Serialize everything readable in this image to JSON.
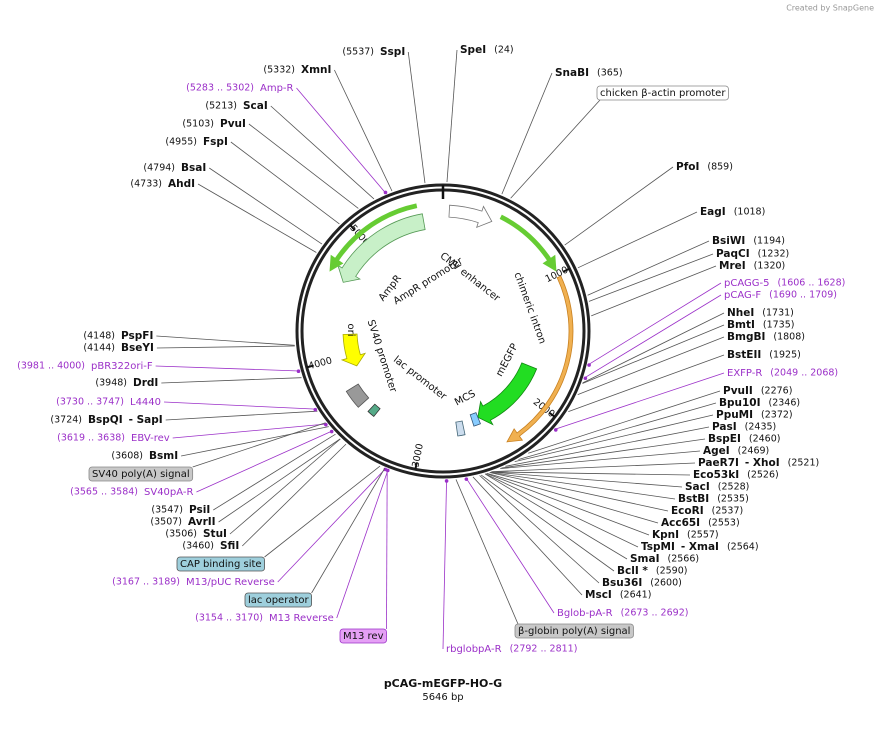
{
  "credit": "Created by SnapGene",
  "title": "pCAG-mEGFP-HO-G",
  "size": "5646 bp",
  "ring_ticks": [
    1000,
    2000,
    3000,
    4000,
    5000
  ],
  "sites": [
    {
      "name": "SpeI",
      "location": "(24)"
    },
    {
      "name": "SnaBI",
      "location": "(365)"
    },
    {
      "name": "PfoI",
      "location": "(859)"
    },
    {
      "name": "EagI",
      "location": "(1018)"
    },
    {
      "name": "BsiWI",
      "location": "(1194)"
    },
    {
      "name": "PaqCI",
      "location": "(1232)"
    },
    {
      "name": "MreI",
      "location": "(1320)"
    },
    {
      "name": "NheI",
      "location": "(1731)"
    },
    {
      "name": "BmtI",
      "location": "(1735)"
    },
    {
      "name": "BmgBI",
      "location": "(1808)"
    },
    {
      "name": "BstEII",
      "location": "(1925)"
    },
    {
      "name": "PvuII",
      "location": "(2276)"
    },
    {
      "name": "Bpu10I",
      "location": "(2346)"
    },
    {
      "name": "PpuMI",
      "location": "(2372)"
    },
    {
      "name": "PasI",
      "location": "(2435)"
    },
    {
      "name": "BspEI",
      "location": "(2460)"
    },
    {
      "name": "AgeI",
      "location": "(2469)"
    },
    {
      "name": "PaeR7I",
      "second_name": "- XhoI",
      "location": "(2521)"
    },
    {
      "name": "Eco53kI",
      "location": "(2526)"
    },
    {
      "name": "SacI",
      "location": "(2528)"
    },
    {
      "name": "BstBI",
      "location": "(2535)"
    },
    {
      "name": "EcoRI",
      "location": "(2537)"
    },
    {
      "name": "Acc65I",
      "location": "(2553)"
    },
    {
      "name": "KpnI",
      "location": "(2557)"
    },
    {
      "name": "TspMI",
      "second_name": "- XmaI",
      "location": "(2564)"
    },
    {
      "name": "SmaI",
      "location": "(2566)"
    },
    {
      "name": "BclI *",
      "location": "(2590)"
    },
    {
      "name": "Bsu36I",
      "location": "(2600)"
    },
    {
      "name": "MscI",
      "location": "(2641)"
    },
    {
      "name": "SspI",
      "location": "(5537)"
    },
    {
      "name": "XmnI",
      "location": "(5332)"
    },
    {
      "name": "ScaI",
      "location": "(5213)"
    },
    {
      "name": "PvuI",
      "location": "(5103)"
    },
    {
      "name": "FspI",
      "location": "(4955)"
    },
    {
      "name": "BsaI",
      "location": "(4794)"
    },
    {
      "name": "AhdI",
      "location": "(4733)"
    },
    {
      "name": "PspFI",
      "location": "(4148)"
    },
    {
      "name": "BseYI",
      "location": "(4144)"
    },
    {
      "name": "DrdI",
      "location": "(3948)"
    },
    {
      "name": "BspQI",
      "second_name": "- SapI",
      "location": "(3724)"
    },
    {
      "name": "BsmI",
      "location": "(3608)"
    },
    {
      "name": "PsiI",
      "location": "(3547)"
    },
    {
      "name": "AvrII",
      "location": "(3507)"
    },
    {
      "name": "StuI",
      "location": "(3506)"
    },
    {
      "name": "SfiI",
      "location": "(3460)"
    }
  ],
  "primers": [
    {
      "name": "Amp-R",
      "location": "(5283 .. 5302)"
    },
    {
      "name": "pCAGG-5",
      "location": "(1606 .. 1628)"
    },
    {
      "name": "pCAG-F",
      "location": "(1690 .. 1709)"
    },
    {
      "name": "EXFP-R",
      "location": "(2049 .. 2068)"
    },
    {
      "name": "Bglob-pA-R",
      "location": "(2673 .. 2692)"
    },
    {
      "name": "rbglobpA-R",
      "location": "(2792 .. 2811)"
    },
    {
      "name": "pBR322ori-F",
      "location": "(3981 .. 4000)"
    },
    {
      "name": "L4440",
      "location": "(3730 .. 3747)"
    },
    {
      "name": "EBV-rev",
      "location": "(3619 .. 3638)"
    },
    {
      "name": "SV40pA-R",
      "location": "(3565 .. 3584)"
    },
    {
      "name": "M13/pUC Reverse",
      "location": "(3167 .. 3189)"
    },
    {
      "name": "M13 Reverse",
      "location": "(3154 .. 3170)"
    }
  ],
  "boxed_features": [
    "chicken β-actin promoter",
    "SV40 poly(A) signal",
    "CAP binding site",
    "lac operator",
    "M13 rev",
    "β-globin poly(A) signal"
  ],
  "map_features": [
    "CMV enhancer",
    "chimeric intron",
    "mEGFP",
    "MCS",
    "lac promoter",
    "SV40 promoter",
    "ori",
    "AmpR",
    "AmpR promoter"
  ]
}
